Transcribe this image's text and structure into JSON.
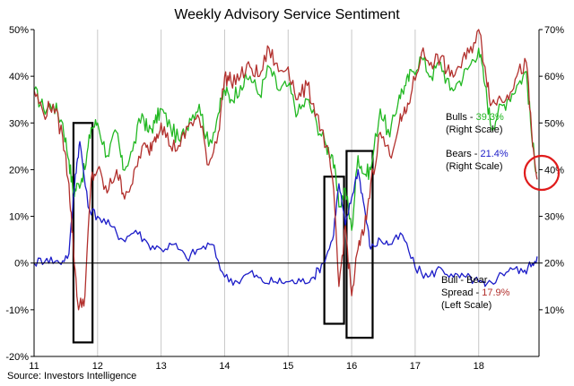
{
  "chart_data": {
    "type": "line",
    "title": "Weekly Advisory Service Sentiment",
    "source": "Source: Investors Intelligence",
    "x_axis": {
      "tick_labels": [
        "11",
        "12",
        "13",
        "14",
        "15",
        "16",
        "17",
        "18"
      ],
      "range": [
        2011.0,
        2018.95
      ]
    },
    "right_axis": {
      "range": [
        0,
        70
      ],
      "tick_labels": [
        "10%",
        "20%",
        "30%",
        "40%",
        "50%",
        "60%",
        "70%"
      ]
    },
    "left_axis": {
      "range": [
        -20,
        50
      ],
      "tick_labels": [
        "-20%",
        "-10%",
        "0%",
        "10%",
        "20%",
        "30%",
        "40%",
        "50%"
      ]
    },
    "grid": true,
    "colors": {
      "bulls": "#22b822",
      "bears": "#1c1cc8",
      "spread": "#b2302d",
      "highlight": "#e01b1b",
      "box": "#000000",
      "grid": "#c8c8c8"
    },
    "series": [
      {
        "key": "bulls",
        "axis": "right",
        "label_main": "Bulls - ",
        "label_value": "39.3%",
        "label_scale": "(Right Scale)",
        "x": [
          2011.0,
          2011.15,
          2011.3,
          2011.45,
          2011.55,
          2011.62,
          2011.7,
          2011.8,
          2011.9,
          2012.0,
          2012.15,
          2012.3,
          2012.4,
          2012.55,
          2012.7,
          2012.8,
          2012.9,
          2013.0,
          2013.15,
          2013.3,
          2013.45,
          2013.6,
          2013.75,
          2013.9,
          2014.0,
          2014.1,
          2014.25,
          2014.4,
          2014.55,
          2014.7,
          2014.85,
          2015.0,
          2015.15,
          2015.3,
          2015.45,
          2015.6,
          2015.7,
          2015.8,
          2015.9,
          2016.0,
          2016.1,
          2016.2,
          2016.3,
          2016.45,
          2016.6,
          2016.75,
          2016.85,
          2016.95,
          2017.1,
          2017.25,
          2017.4,
          2017.55,
          2017.7,
          2017.85,
          2018.0,
          2018.1,
          2018.2,
          2018.3,
          2018.45,
          2018.6,
          2018.75,
          2018.85,
          2018.92
        ],
        "values": [
          57,
          53,
          54,
          50,
          42,
          35,
          37,
          40,
          49,
          50,
          43,
          48,
          40,
          44,
          52,
          48,
          50,
          53,
          49,
          46,
          51,
          54,
          45,
          52,
          57,
          55,
          58,
          60,
          56,
          62,
          57,
          58,
          52,
          55,
          50,
          45,
          43,
          32,
          36,
          27,
          43,
          39,
          40,
          53,
          47,
          56,
          58,
          61,
          64,
          60,
          63,
          57,
          59,
          62,
          66,
          58,
          49,
          52,
          55,
          58,
          61,
          45,
          39.3
        ]
      },
      {
        "key": "bears",
        "axis": "right",
        "label_main": "Bears - ",
        "label_value": "21.4%",
        "label_scale": "(Right Scale)",
        "x": [
          2011.0,
          2011.2,
          2011.4,
          2011.55,
          2011.65,
          2011.72,
          2011.85,
          2012.0,
          2012.2,
          2012.4,
          2012.6,
          2012.8,
          2013.0,
          2013.2,
          2013.4,
          2013.6,
          2013.8,
          2014.0,
          2014.2,
          2014.4,
          2014.6,
          2014.8,
          2015.0,
          2015.2,
          2015.4,
          2015.55,
          2015.7,
          2015.8,
          2015.9,
          2016.0,
          2016.1,
          2016.2,
          2016.3,
          2016.45,
          2016.6,
          2016.8,
          2017.0,
          2017.2,
          2017.4,
          2017.6,
          2017.8,
          2018.0,
          2018.1,
          2018.3,
          2018.5,
          2018.7,
          2018.85,
          2018.92
        ],
        "values": [
          20,
          21,
          20,
          22,
          39,
          46,
          32,
          30,
          28,
          25,
          27,
          24,
          23,
          24,
          21,
          23,
          24,
          17,
          16,
          18,
          16,
          16,
          16,
          16,
          17,
          20,
          25,
          37,
          28,
          34,
          40,
          32,
          23,
          25,
          24,
          26,
          19,
          17,
          19,
          17,
          17,
          16,
          15,
          17,
          19,
          18,
          20,
          21.4
        ]
      },
      {
        "key": "spread",
        "axis": "left",
        "label_main": "Bull - Bear",
        "label_value_prefix": "Spread - ",
        "label_value": "17.9%",
        "label_scale": "(Left Scale)",
        "x": [
          2011.0,
          2011.15,
          2011.3,
          2011.45,
          2011.55,
          2011.62,
          2011.7,
          2011.8,
          2011.9,
          2012.0,
          2012.15,
          2012.3,
          2012.4,
          2012.55,
          2012.7,
          2012.8,
          2012.9,
          2013.0,
          2013.15,
          2013.3,
          2013.45,
          2013.6,
          2013.75,
          2013.9,
          2014.0,
          2014.1,
          2014.25,
          2014.4,
          2014.55,
          2014.7,
          2014.85,
          2015.0,
          2015.15,
          2015.3,
          2015.45,
          2015.6,
          2015.7,
          2015.8,
          2015.9,
          2016.0,
          2016.1,
          2016.2,
          2016.3,
          2016.45,
          2016.6,
          2016.75,
          2016.85,
          2016.95,
          2017.1,
          2017.25,
          2017.4,
          2017.55,
          2017.7,
          2017.85,
          2018.0,
          2018.1,
          2018.2,
          2018.3,
          2018.45,
          2018.6,
          2018.75,
          2018.85,
          2018.92
        ],
        "values": [
          37,
          32,
          34,
          27,
          17,
          3,
          -10,
          -7,
          18,
          20,
          15,
          20,
          15,
          17,
          25,
          24,
          27,
          30,
          25,
          25,
          30,
          31,
          21,
          28,
          40,
          39,
          40,
          42,
          40,
          46,
          41,
          42,
          35,
          38,
          32,
          25,
          18,
          -5,
          8,
          -7,
          3,
          7,
          17,
          28,
          23,
          30,
          32,
          37,
          45,
          43,
          44,
          40,
          42,
          45,
          50,
          42,
          34,
          35,
          36,
          40,
          43,
          25,
          17.9
        ]
      }
    ],
    "highlight_boxes_x": [
      [
        2011.62,
        2011.92
      ],
      [
        2015.57,
        2015.88
      ],
      [
        2015.92,
        2016.33
      ]
    ]
  }
}
